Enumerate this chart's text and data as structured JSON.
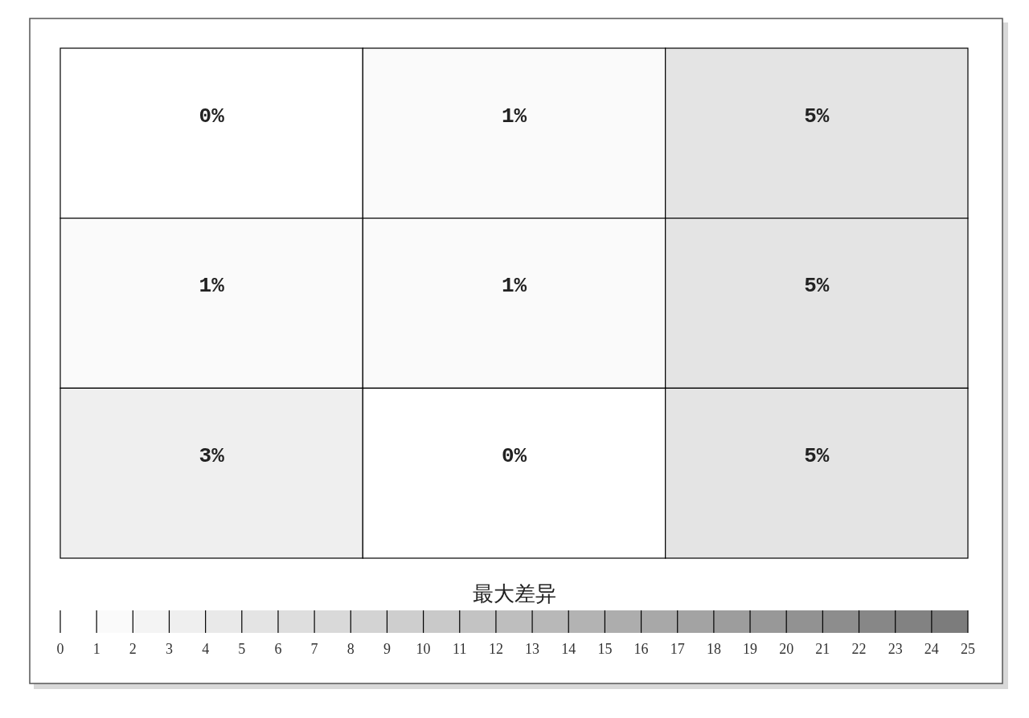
{
  "chart_data": {
    "type": "heatmap",
    "categories": [
      null,
      null,
      null
    ],
    "y_categories": [
      null,
      null,
      null
    ],
    "cells": [
      [
        0,
        1,
        5
      ],
      [
        1,
        1,
        5
      ],
      [
        3,
        0,
        5
      ]
    ],
    "cell_labels": [
      [
        "0%",
        "1%",
        "5%"
      ],
      [
        "1%",
        "1%",
        "5%"
      ],
      [
        "3%",
        "0%",
        "5%"
      ]
    ],
    "clim": [
      0,
      25
    ],
    "cticks": [
      0,
      1,
      2,
      3,
      4,
      5,
      6,
      7,
      8,
      9,
      10,
      11,
      12,
      13,
      14,
      15,
      16,
      17,
      18,
      19,
      20,
      21,
      22,
      23,
      24,
      25
    ],
    "clabel": "最大差异",
    "colors": [
      "#ffffff",
      "#777777"
    ]
  }
}
